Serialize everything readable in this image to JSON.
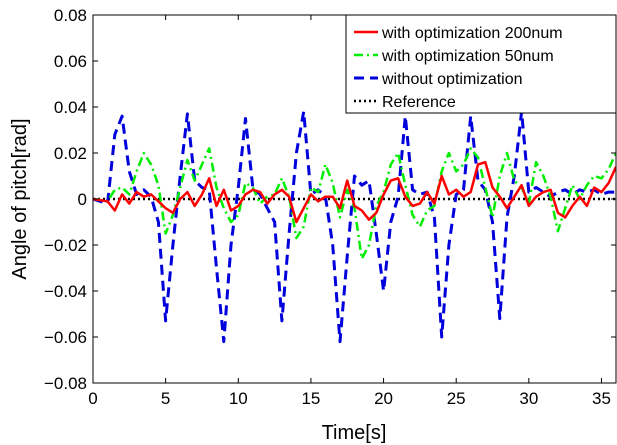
{
  "chart_data": {
    "type": "line",
    "xlabel": "Time[s]",
    "ylabel": "Angle of pitch[rad]",
    "xlim": [
      0,
      36
    ],
    "ylim": [
      -0.08,
      0.08
    ],
    "xticks": [
      0,
      5,
      10,
      15,
      20,
      25,
      30,
      35
    ],
    "yticks": [
      -0.08,
      -0.06,
      -0.04,
      -0.02,
      0,
      0.02,
      0.04,
      0.06,
      0.08
    ],
    "xtick_labels": [
      "0",
      "5",
      "10",
      "15",
      "20",
      "25",
      "30",
      "35"
    ],
    "ytick_labels": [
      "−0.08",
      "−0.06",
      "−0.04",
      "−0.02",
      "0",
      "0.02",
      "0.04",
      "0.06",
      "0.08"
    ],
    "grid": false,
    "legend_position": "top-right",
    "series": [
      {
        "name": "with optimization 200num",
        "color": "#ff0000",
        "style": "solid",
        "x": [
          0,
          1,
          1.5,
          2,
          2.5,
          3,
          3.5,
          4,
          4.5,
          5,
          5.5,
          6,
          6.5,
          7,
          7.5,
          8,
          8.5,
          9,
          9.5,
          10,
          10.5,
          11,
          11.5,
          12,
          12.5,
          13,
          13.5,
          14,
          14.5,
          15,
          15.5,
          16,
          16.5,
          17,
          17.5,
          18,
          18.5,
          19,
          19.5,
          20,
          20.5,
          21,
          21.5,
          22,
          22.5,
          23,
          23.5,
          24,
          24.5,
          25,
          25.5,
          26,
          26.5,
          27,
          27.5,
          28,
          28.5,
          29,
          29.5,
          30,
          30.5,
          31,
          31.5,
          32,
          32.5,
          33,
          33.5,
          34,
          34.5,
          35,
          35.5,
          36
        ],
        "y": [
          0,
          -0.001,
          -0.005,
          0.002,
          -0.002,
          0.003,
          0.001,
          0.002,
          -0.001,
          -0.004,
          -0.006,
          0,
          0.003,
          -0.003,
          0.002,
          0.009,
          -0.003,
          0.004,
          -0.005,
          -0.003,
          0.002,
          0.004,
          0.003,
          -0.002,
          0.002,
          0.004,
          0.001,
          -0.01,
          -0.004,
          0.002,
          -0.001,
          0.001,
          0.001,
          -0.004,
          0.008,
          -0.003,
          -0.005,
          -0.009,
          -0.006,
          0.002,
          0.008,
          0.009,
          0.001,
          -0.003,
          -0.002,
          0.003,
          -0.002,
          0.01,
          0.002,
          0.004,
          0.001,
          0.003,
          0.015,
          0.016,
          0.005,
          0.001,
          -0.004,
          0.001,
          0.006,
          -0.003,
          0.001,
          0.003,
          0.004,
          -0.006,
          -0.008,
          -0.003,
          0.001,
          -0.003,
          0.005,
          0.003,
          0.007,
          0.014
        ]
      },
      {
        "name": "with optimization 50num",
        "color": "#00ee00",
        "style": "dashdot",
        "x": [
          0,
          1,
          1.5,
          2,
          2.5,
          3,
          3.5,
          4,
          4.5,
          5,
          5.5,
          6,
          6.5,
          7,
          7.5,
          8,
          8.5,
          9,
          9.5,
          10,
          10.5,
          11,
          11.5,
          12,
          12.5,
          13,
          13.5,
          14,
          14.5,
          15,
          15.5,
          16,
          16.5,
          17,
          17.5,
          18,
          18.5,
          19,
          19.5,
          20,
          20.5,
          21,
          21.5,
          22,
          22.5,
          23,
          23.5,
          24,
          24.5,
          25,
          25.5,
          26,
          26.5,
          27,
          27.5,
          28,
          28.5,
          29,
          29.5,
          30,
          30.5,
          31,
          31.5,
          32,
          32.5,
          33,
          33.5,
          34,
          34.5,
          35,
          35.5,
          36
        ],
        "y": [
          0,
          -0.001,
          0.004,
          0.005,
          0.002,
          0.012,
          0.02,
          0.015,
          0.006,
          -0.015,
          -0.007,
          0.005,
          0.017,
          0.008,
          0.015,
          0.022,
          0.005,
          -0.004,
          -0.01,
          -0.007,
          0.007,
          0.005,
          -0.002,
          0.001,
          0.002,
          0.009,
          0.001,
          -0.017,
          -0.012,
          0.005,
          0.003,
          0.015,
          0.007,
          -0.008,
          0.004,
          -0.004,
          -0.026,
          -0.02,
          -0.003,
          0.003,
          0.015,
          0.02,
          0.006,
          -0.007,
          -0.012,
          -0.005,
          -0.003,
          0.012,
          0.02,
          0.012,
          0.015,
          0.022,
          0.018,
          0.005,
          -0.008,
          0.01,
          0.02,
          0.008,
          0.005,
          -0.002,
          0.016,
          0.01,
          0.001,
          -0.014,
          -0.004,
          0.006,
          0,
          0.006,
          0.01,
          0.009,
          0.013,
          0.02
        ]
      },
      {
        "name": "without optimization",
        "color": "#0000dd",
        "style": "dashed",
        "x": [
          0,
          1,
          1.5,
          2,
          2.5,
          3,
          3.5,
          4,
          4.5,
          5,
          5.5,
          6,
          6.5,
          7,
          7.5,
          8,
          8.5,
          9,
          9.5,
          10,
          10.5,
          11,
          11.5,
          12,
          12.5,
          13,
          13.5,
          14,
          14.5,
          15,
          15.5,
          16,
          16.5,
          17,
          17.5,
          18,
          18.5,
          19,
          19.5,
          20,
          20.5,
          21,
          21.5,
          22,
          22.5,
          23,
          23.5,
          24,
          24.5,
          25,
          25.5,
          26,
          26.5,
          27,
          27.5,
          28,
          28.5,
          29,
          29.5,
          30,
          30.5,
          31,
          31.5,
          32,
          32.5,
          33,
          33.5,
          34,
          34.5,
          35,
          35.5,
          36
        ],
        "y": [
          0,
          -0.002,
          0.028,
          0.036,
          0.012,
          0.002,
          0.004,
          0.001,
          -0.01,
          -0.053,
          -0.02,
          0.01,
          0.037,
          0.008,
          0.005,
          0.004,
          -0.03,
          -0.062,
          -0.02,
          0.005,
          0.035,
          0.005,
          0.002,
          -0.004,
          -0.01,
          -0.053,
          -0.015,
          0.02,
          0.038,
          0.002,
          0.004,
          0.001,
          -0.02,
          -0.062,
          -0.025,
          0.01,
          0.006,
          0.008,
          -0.015,
          -0.04,
          -0.01,
          0.001,
          0.036,
          0.004,
          0.002,
          0.003,
          -0.008,
          -0.06,
          -0.02,
          0.002,
          0.004,
          0.036,
          0.008,
          0.004,
          -0.01,
          -0.052,
          -0.008,
          0.01,
          0.038,
          0.003,
          0.005,
          0.003,
          0.001,
          0.003,
          0.004,
          0.002,
          0.004,
          0.003,
          0.004,
          0.002,
          0.003,
          0.003
        ]
      },
      {
        "name": "Reference",
        "color": "#000000",
        "style": "dotted",
        "x": [
          0,
          36
        ],
        "y": [
          0,
          0
        ]
      }
    ]
  }
}
